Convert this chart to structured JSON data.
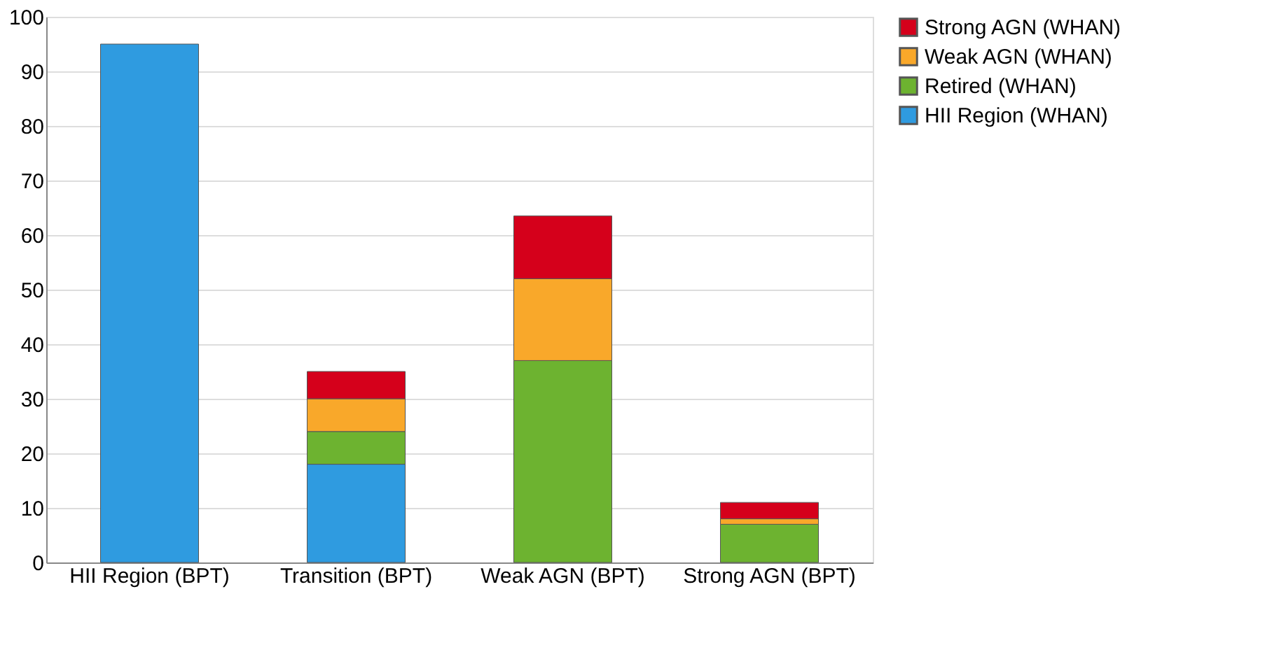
{
  "chart_data": {
    "type": "bar",
    "stacked": true,
    "categories": [
      "HII Region (BPT)",
      "Transition (BPT)",
      "Weak AGN (BPT)",
      "Strong AGN (BPT)"
    ],
    "series": [
      {
        "name": "HII Region (WHAN)",
        "color": "#2f9be0",
        "values": [
          95,
          18,
          null,
          null
        ]
      },
      {
        "name": "Retired (WHAN)",
        "color": "#6db330",
        "values": [
          null,
          6,
          37,
          7
        ]
      },
      {
        "name": "Weak AGN (WHAN)",
        "color": "#f9a82a",
        "values": [
          null,
          6,
          15,
          1
        ]
      },
      {
        "name": "Strong AGN (WHAN)",
        "color": "#d5001b",
        "values": [
          null,
          5,
          11.5,
          3
        ]
      }
    ],
    "ylim": [
      0,
      100
    ],
    "yticks": [
      0,
      10,
      20,
      30,
      40,
      50,
      60,
      70,
      80,
      90,
      100
    ],
    "grid": "y",
    "legend": "right"
  }
}
